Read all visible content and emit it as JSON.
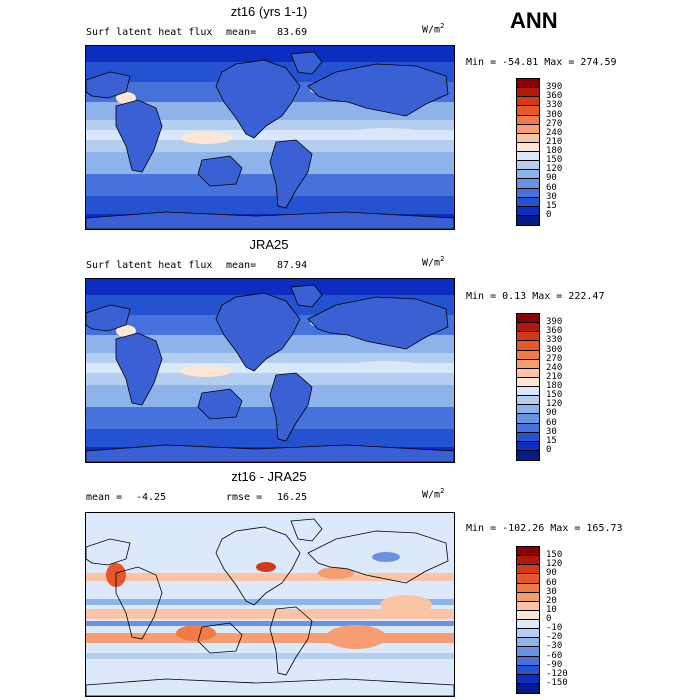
{
  "season": "ANN",
  "panels": [
    {
      "title": "zt16 (yrs 1-1)",
      "variable": "Surf latent heat flux",
      "stat_label": "mean=",
      "stat_value": "83.69",
      "units_base": "W/m",
      "units_exp": "2",
      "minmax": "Min = -54.81 Max = 274.59",
      "cb_labels": [
        "390",
        "360",
        "330",
        "300",
        "270",
        "240",
        "210",
        "180",
        "150",
        "120",
        "90",
        "60",
        "30",
        "15",
        "0"
      ],
      "cb_colors": [
        "#8b0000",
        "#b01a0a",
        "#d2381a",
        "#e8572a",
        "#f07a48",
        "#f69e72",
        "#fbc4a4",
        "#fde6d6",
        "#d8e8f8",
        "#b4cef0",
        "#8eb2ea",
        "#6a92e2",
        "#4772dc",
        "#2552d0",
        "#0c2dc0",
        "#061a88"
      ],
      "map_kind": "flux"
    },
    {
      "title": "JRA25",
      "variable": "Surf latent heat flux",
      "stat_label": "mean=",
      "stat_value": "87.94",
      "units_base": "W/m",
      "units_exp": "2",
      "minmax": "Min =   0.13 Max = 222.47",
      "cb_labels": [
        "390",
        "360",
        "330",
        "300",
        "270",
        "240",
        "210",
        "180",
        "150",
        "120",
        "90",
        "60",
        "30",
        "15",
        "0"
      ],
      "cb_colors": [
        "#8b0000",
        "#b01a0a",
        "#d2381a",
        "#e8572a",
        "#f07a48",
        "#f69e72",
        "#fbc4a4",
        "#fde6d6",
        "#d8e8f8",
        "#b4cef0",
        "#8eb2ea",
        "#6a92e2",
        "#4772dc",
        "#2552d0",
        "#0c2dc0",
        "#061a88"
      ],
      "map_kind": "flux"
    },
    {
      "title": "zt16 - JRA25",
      "mean_label": "mean =",
      "mean_value": "-4.25",
      "rmse_label": "rmse =",
      "rmse_value": "16.25",
      "units_base": "W/m",
      "units_exp": "2",
      "minmax": "Min = -102.26 Max = 165.73",
      "cb_labels": [
        "150",
        "120",
        "90",
        "60",
        "30",
        "20",
        "10",
        "0",
        "-10",
        "-20",
        "-30",
        "-60",
        "-90",
        "-120",
        "-150"
      ],
      "cb_colors": [
        "#8b0000",
        "#b01a0a",
        "#d2381a",
        "#e8572a",
        "#f07a48",
        "#f69e72",
        "#fbc4a4",
        "#fde6d6",
        "#dbe9fa",
        "#b4cef0",
        "#8eb2ea",
        "#6a92e2",
        "#4772dc",
        "#2552d0",
        "#0c2dc0",
        "#061a88"
      ],
      "map_kind": "diff"
    }
  ]
}
